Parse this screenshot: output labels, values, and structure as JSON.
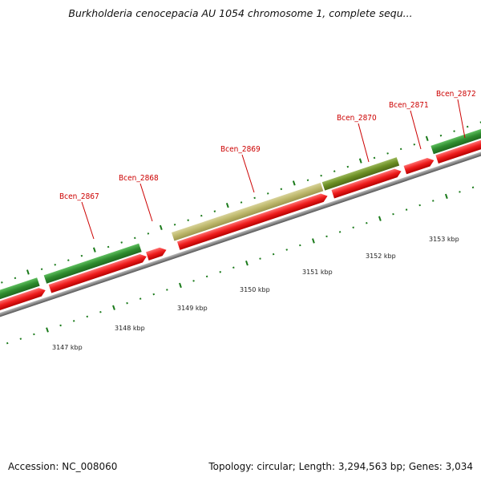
{
  "header": {
    "title": "Burkholderia cenocepacia AU 1054 chromosome 1, complete sequ..."
  },
  "footer": {
    "accession": "Accession: NC_008060",
    "summary": "Topology: circular; Length: 3,294,563 bp; Genes: 3,034"
  },
  "colors": {
    "plus_strand": "#2e8b2e",
    "plus_strand_highlight": "#6b8e23",
    "plus_strand_faded": "#bdb76b",
    "minus_strand": "#ee1c1c",
    "backbone": "#888888",
    "tick": "#1a7a1a",
    "label": "#cc0000"
  },
  "scale": {
    "ticks": [
      {
        "label": "3147 kbp"
      },
      {
        "label": "3148 kbp"
      },
      {
        "label": "3149 kbp"
      },
      {
        "label": "3150 kbp"
      },
      {
        "label": "3151 kbp"
      },
      {
        "label": "3152 kbp"
      },
      {
        "label": "3153 kbp"
      }
    ]
  },
  "genes": [
    {
      "name": "Bcen_2867"
    },
    {
      "name": "Bcen_2868"
    },
    {
      "name": "Bcen_2869"
    },
    {
      "name": "Bcen_2870"
    },
    {
      "name": "Bcen_2871"
    },
    {
      "name": "Bcen_2872"
    }
  ]
}
